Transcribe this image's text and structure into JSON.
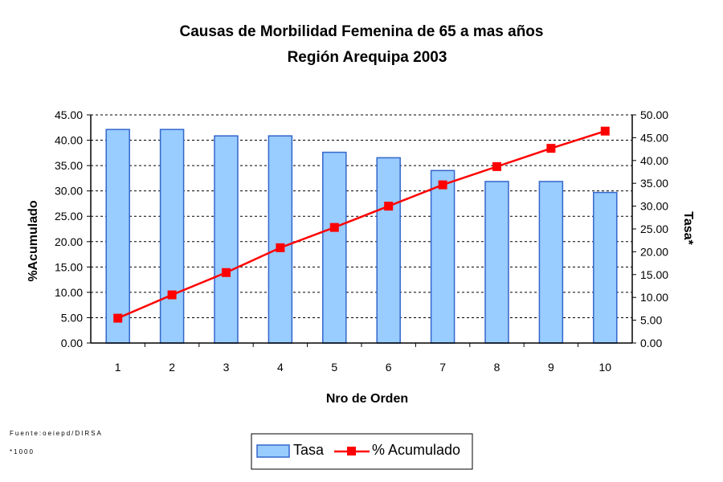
{
  "chart_data": {
    "type": "bar",
    "title": "Causas de Morbilidad Femenina de 65 a mas años",
    "subtitle": "Región Arequipa 2003",
    "xlabel": "Nro de Orden",
    "ylabel_left": "%Acumulado",
    "ylabel_right": "Tasa*",
    "categories": [
      "1",
      "2",
      "3",
      "4",
      "5",
      "6",
      "7",
      "8",
      "9",
      "10"
    ],
    "ylim_left": [
      0,
      45
    ],
    "yticks_left": [
      "0.00",
      "5.00",
      "10.00",
      "15.00",
      "20.00",
      "25.00",
      "30.00",
      "35.00",
      "40.00",
      "45.00"
    ],
    "ylim_right": [
      0,
      50
    ],
    "yticks_right": [
      "0.00",
      "5.00",
      "10.00",
      "15.00",
      "20.00",
      "25.00",
      "30.00",
      "35.00",
      "40.00",
      "45.00",
      "50.00"
    ],
    "grid": "horizontal dashed",
    "legend_position": "bottom",
    "series": [
      {
        "name": "Tasa",
        "kind": "bar",
        "axis": "right",
        "color": "#99ccff",
        "edge_color": "#3366cc",
        "values": [
          46.8,
          46.8,
          45.4,
          45.4,
          41.8,
          40.6,
          37.8,
          35.4,
          35.4,
          33.0
        ]
      },
      {
        "name": "% Acumulado",
        "kind": "line",
        "axis": "left",
        "color": "#ff0000",
        "marker": "square",
        "values": [
          4.9,
          9.5,
          13.9,
          18.8,
          22.8,
          27.0,
          31.2,
          34.8,
          38.4,
          41.8
        ]
      }
    ]
  },
  "notes": {
    "source": "Fuente:oeiepd/DIRSA",
    "footnote": "*1000"
  }
}
